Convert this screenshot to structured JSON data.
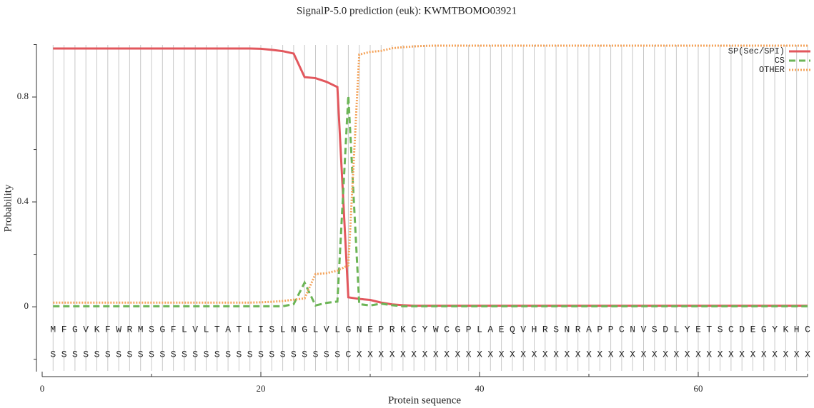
{
  "chart_data": {
    "type": "line",
    "title": "SignalP-5.0 prediction (euk):  KWMTBOMO03921",
    "x_label": "Protein sequence",
    "y_label": "Probability",
    "xlim": [
      0,
      70
    ],
    "ylim": [
      -0.25,
      1.0
    ],
    "xticks": [
      0,
      20,
      40,
      60
    ],
    "xminor_ticks": [
      10,
      30,
      50,
      70
    ],
    "yticks": [
      0,
      0.4,
      0.8
    ],
    "yminor_ticks": [
      -0.2,
      0.2,
      0.6,
      1.0
    ],
    "legend": "upper right",
    "x": [
      1,
      2,
      3,
      4,
      5,
      6,
      7,
      8,
      9,
      10,
      11,
      12,
      13,
      14,
      15,
      16,
      17,
      18,
      19,
      20,
      21,
      22,
      23,
      24,
      25,
      26,
      27,
      28,
      29,
      30,
      31,
      32,
      33,
      34,
      35,
      36,
      37,
      38,
      39,
      40,
      41,
      42,
      43,
      44,
      45,
      46,
      47,
      48,
      49,
      50,
      51,
      52,
      53,
      54,
      55,
      56,
      57,
      58,
      59,
      60,
      61,
      62,
      63,
      64,
      65,
      66,
      67,
      68,
      69,
      70
    ],
    "sequence": [
      "M",
      "F",
      "G",
      "V",
      "K",
      "F",
      "W",
      "R",
      "M",
      "S",
      "G",
      "F",
      "L",
      "V",
      "L",
      "T",
      "A",
      "T",
      "L",
      "I",
      "S",
      "L",
      "N",
      "G",
      "L",
      "V",
      "L",
      "G",
      "N",
      "E",
      "P",
      "R",
      "K",
      "C",
      "Y",
      "W",
      "C",
      "G",
      "P",
      "L",
      "A",
      "E",
      "Q",
      "V",
      "H",
      "R",
      "S",
      "N",
      "R",
      "A",
      "P",
      "P",
      "C",
      "N",
      "V",
      "S",
      "D",
      "L",
      "Y",
      "E",
      "T",
      "S",
      "C",
      "D",
      "E",
      "G",
      "Y",
      "K",
      "H",
      "C"
    ],
    "annotation": [
      "S",
      "S",
      "S",
      "S",
      "S",
      "S",
      "S",
      "S",
      "S",
      "S",
      "S",
      "S",
      "S",
      "S",
      "S",
      "S",
      "S",
      "S",
      "S",
      "S",
      "S",
      "S",
      "S",
      "S",
      "S",
      "S",
      "S",
      "C",
      "X",
      "X",
      "X",
      "X",
      "X",
      "X",
      "X",
      "X",
      "X",
      "X",
      "X",
      "X",
      "X",
      "X",
      "X",
      "X",
      "X",
      "X",
      "X",
      "X",
      "X",
      "X",
      "X",
      "X",
      "X",
      "X",
      "X",
      "X",
      "X",
      "X",
      "X",
      "X",
      "X",
      "X",
      "X",
      "X",
      "X",
      "X",
      "X",
      "X",
      "X",
      "X"
    ],
    "series": [
      {
        "name": "SP(Sec/SPI)",
        "color": "#e2575d",
        "style": "solid",
        "values": [
          0.985,
          0.985,
          0.985,
          0.985,
          0.985,
          0.985,
          0.985,
          0.985,
          0.985,
          0.985,
          0.985,
          0.985,
          0.985,
          0.985,
          0.985,
          0.985,
          0.985,
          0.985,
          0.985,
          0.984,
          0.98,
          0.975,
          0.966,
          0.876,
          0.872,
          0.858,
          0.838,
          0.036,
          0.03,
          0.026,
          0.016,
          0.009,
          0.006,
          0.004,
          0.004,
          0.004,
          0.004,
          0.004,
          0.004,
          0.004,
          0.004,
          0.004,
          0.004,
          0.004,
          0.004,
          0.004,
          0.004,
          0.004,
          0.004,
          0.004,
          0.004,
          0.004,
          0.004,
          0.004,
          0.004,
          0.004,
          0.004,
          0.004,
          0.004,
          0.004,
          0.004,
          0.004,
          0.004,
          0.004,
          0.004,
          0.004,
          0.004,
          0.004,
          0.004,
          0.004
        ]
      },
      {
        "name": "CS",
        "color": "#6cb556",
        "style": "dashed",
        "values": [
          0.002,
          0.002,
          0.002,
          0.002,
          0.002,
          0.002,
          0.002,
          0.002,
          0.002,
          0.002,
          0.002,
          0.002,
          0.002,
          0.002,
          0.002,
          0.002,
          0.002,
          0.002,
          0.002,
          0.002,
          0.002,
          0.002,
          0.01,
          0.092,
          0.005,
          0.015,
          0.02,
          0.805,
          0.01,
          0.005,
          0.012,
          0.006,
          0.002,
          0.002,
          0.002,
          0.002,
          0.002,
          0.002,
          0.002,
          0.002,
          0.002,
          0.002,
          0.002,
          0.002,
          0.002,
          0.002,
          0.002,
          0.002,
          0.002,
          0.002,
          0.002,
          0.002,
          0.002,
          0.002,
          0.002,
          0.002,
          0.002,
          0.002,
          0.002,
          0.002,
          0.002,
          0.002,
          0.002,
          0.002,
          0.002,
          0.002,
          0.002,
          0.002,
          0.002,
          0.002
        ]
      },
      {
        "name": "OTHER",
        "color": "#f4a45c",
        "style": "dotted",
        "values": [
          0.016,
          0.016,
          0.016,
          0.016,
          0.016,
          0.016,
          0.016,
          0.016,
          0.016,
          0.016,
          0.016,
          0.016,
          0.016,
          0.016,
          0.016,
          0.016,
          0.016,
          0.016,
          0.016,
          0.017,
          0.019,
          0.022,
          0.027,
          0.032,
          0.125,
          0.128,
          0.138,
          0.158,
          0.962,
          0.972,
          0.976,
          0.986,
          0.99,
          0.993,
          0.995,
          0.996,
          0.996,
          0.996,
          0.996,
          0.996,
          0.996,
          0.996,
          0.996,
          0.996,
          0.996,
          0.996,
          0.996,
          0.996,
          0.996,
          0.996,
          0.996,
          0.996,
          0.996,
          0.996,
          0.996,
          0.996,
          0.996,
          0.996,
          0.996,
          0.996,
          0.996,
          0.996,
          0.996,
          0.996,
          0.996,
          0.996,
          0.996,
          0.996,
          0.996,
          0.996
        ]
      }
    ]
  }
}
